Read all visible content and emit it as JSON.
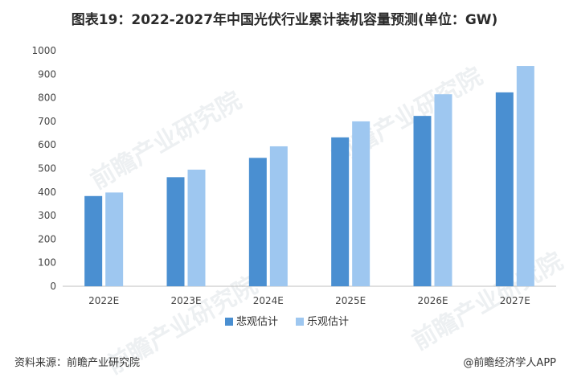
{
  "title": "图表19：2022-2027年中国光伏行业累计装机容量预测(单位：GW)",
  "source_text": "资料来源：前瞻产业研究院",
  "credit_text": "@前瞻经济学人APP",
  "watermark_text": "前瞻产业研究院",
  "colors": {
    "pessimistic": "#4a8fd1",
    "optimistic": "#9ec7f0",
    "axis": "#bfbfbf",
    "tick_text": "#444444"
  },
  "chart_data": {
    "type": "bar",
    "title": "图表19：2022-2027年中国光伏行业累计装机容量预测(单位：GW)",
    "xlabel": "",
    "ylabel": "",
    "categories": [
      "2022E",
      "2023E",
      "2024E",
      "2025E",
      "2026E",
      "2027E"
    ],
    "ylim": [
      0,
      1000
    ],
    "yticks": [
      0,
      100,
      200,
      300,
      400,
      500,
      600,
      700,
      800,
      900,
      1000
    ],
    "grid": false,
    "legend_position": "bottom-center",
    "series": [
      {
        "name": "悲观估计",
        "values": [
          383,
          463,
          545,
          632,
          723,
          823
        ],
        "color": "#4a8fd1"
      },
      {
        "name": "乐观估计",
        "values": [
          398,
          495,
          594,
          700,
          815,
          935
        ],
        "color": "#9ec7f0"
      }
    ]
  }
}
